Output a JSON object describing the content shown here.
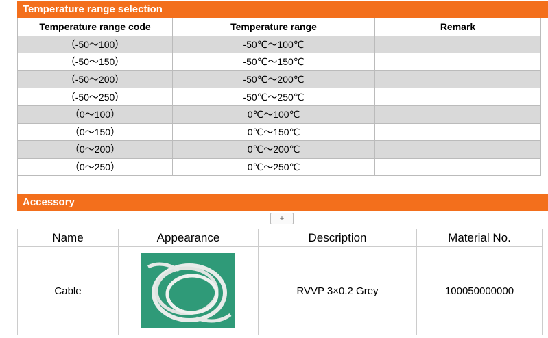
{
  "temperature_section": {
    "title": "Temperature range selection",
    "table": {
      "header": [
        "Temperature range code",
        "Temperature range",
        "Remark"
      ],
      "rows": [
        [
          "（-50～100）",
          "-50℃～100℃"
        ],
        [
          "（-50～150）",
          "-50℃～150℃"
        ],
        [
          "（-50～200）",
          "-50℃～200℃"
        ],
        [
          "（-50～250）",
          "-50℃～250℃"
        ],
        [
          "（0～100）",
          "0℃～100℃"
        ],
        [
          "（0～150）",
          "0℃～150℃"
        ],
        [
          "（0～200）",
          "0℃～200℃"
        ],
        [
          "（0～250）",
          "0℃～250℃"
        ]
      ]
    }
  },
  "accessory_section": {
    "title": "Accessory",
    "expand_button": "+",
    "table": {
      "header": [
        "Name",
        "Appearance",
        "Description",
        "Material No."
      ],
      "rows": [
        {
          "name": "Cable",
          "description": "RVVP 3×0.2 Grey",
          "material_no": "100050000000"
        }
      ]
    }
  }
}
